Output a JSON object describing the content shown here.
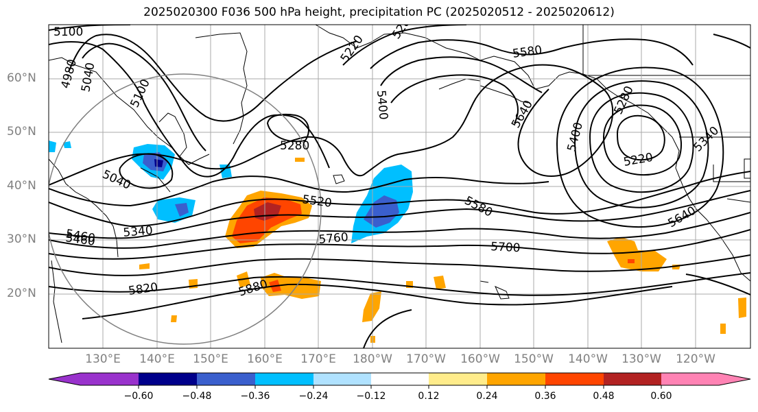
{
  "title": "2025020300 F036 500 hPa height, precipitation PC (2025020512 - 2025020612)",
  "lat_labels": [
    "60°N",
    "50°N",
    "40°N",
    "30°N",
    "20°N"
  ],
  "lon_labels": [
    "130°E",
    "140°E",
    "150°E",
    "160°E",
    "170°E",
    "180°W",
    "170°W",
    "160°W",
    "150°W",
    "140°W",
    "130°W",
    "120°W"
  ],
  "contour_labels": [
    "5100",
    "4980",
    "5040",
    "5100",
    "5220",
    "5280",
    "5580",
    "5400",
    "5640",
    "5280",
    "5400",
    "5220",
    "5340",
    "5460",
    "5520",
    "5580",
    "5640",
    "5460",
    "5340",
    "5760",
    "5700",
    "5820",
    "5880",
    "5280",
    "5040"
  ],
  "colorbar": {
    "ticks": [
      "−0.60",
      "−0.48",
      "−0.36",
      "−0.24",
      "−0.12",
      "0.12",
      "0.24",
      "0.36",
      "0.48",
      "0.60"
    ],
    "colors": [
      "#9932cc",
      "#00008b",
      "#3a5fcd",
      "#00bfff",
      "#b0e2ff",
      "#ffffff",
      "#ffec8b",
      "#ffa500",
      "#ff4500",
      "#b22222",
      "#ff83b4"
    ]
  }
}
